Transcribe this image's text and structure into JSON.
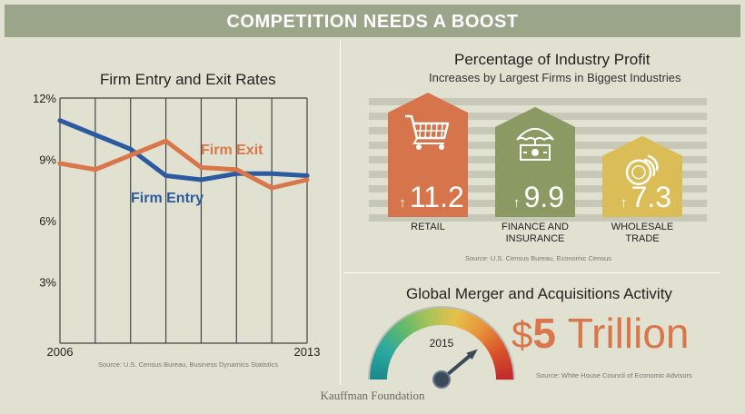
{
  "banner": {
    "title": "COMPETITION NEEDS A BOOST"
  },
  "footer": {
    "org": "Kauffman Foundation"
  },
  "colors": {
    "entry": "#2c5aa0",
    "exit": "#d9774b",
    "banner": "#9ba58a",
    "background": "#e1e1d1"
  },
  "chart_data": [
    {
      "type": "line",
      "title": "Firm Entry and Exit Rates",
      "source": "Source: U.S. Census Bureau, Business Dynamics Statistics",
      "x": [
        2006,
        2007,
        2008,
        2009,
        2010,
        2011,
        2012,
        2013
      ],
      "x_tick_labels": [
        "2006",
        "2013"
      ],
      "y_ticks": [
        "12%",
        "9%",
        "6%",
        "3%"
      ],
      "ylim": [
        0,
        12
      ],
      "grid": "vertical",
      "series": [
        {
          "name": "Firm Entry",
          "color": "#2c5aa0",
          "values": [
            10.9,
            10.2,
            9.5,
            8.2,
            8.0,
            8.3,
            8.3,
            8.2
          ]
        },
        {
          "name": "Firm Exit",
          "color": "#d9774b",
          "values": [
            8.8,
            8.5,
            9.2,
            9.9,
            8.6,
            8.5,
            7.6,
            8.0
          ]
        }
      ]
    },
    {
      "type": "bar",
      "title": "Percentage of Industry Profit",
      "subtitle": "Increases by Largest Firms in Biggest Industries",
      "source": "Source: U.S. Census Bureau, Economic Census",
      "bars": [
        {
          "label": "RETAIL",
          "label2": "",
          "value": 11.2,
          "display": "11.2",
          "color": "#d6754c",
          "icon": "shopping-cart-icon"
        },
        {
          "label": "FINANCE AND",
          "label2": "INSURANCE",
          "value": 9.9,
          "display": "9.9",
          "color": "#8a9a62",
          "icon": "umbrella-money-icon"
        },
        {
          "label": "WHOLESALE",
          "label2": "TRADE",
          "value": 7.3,
          "display": "7.3",
          "color": "#dbbd57",
          "icon": "coins-icon"
        }
      ]
    }
  ],
  "ma": {
    "title": "Global Merger and Acquisitions Activity",
    "year": "2015",
    "dollar": "$",
    "amount": "5",
    "unit": "Trillion",
    "source": "Source: White House Council of Economic Advisors"
  }
}
